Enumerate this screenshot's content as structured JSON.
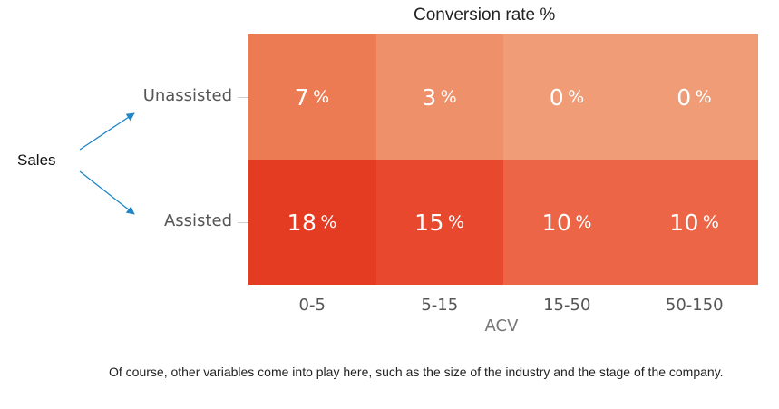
{
  "chart_data": {
    "type": "heatmap",
    "title": "Conversion rate %",
    "xlabel": "ACV",
    "ylabel": "",
    "x_categories": [
      "0-5",
      "5-15",
      "15-50",
      "50-150"
    ],
    "y_categories": [
      "Unassisted",
      "Assisted"
    ],
    "values": [
      [
        7,
        3,
        0,
        0
      ],
      [
        18,
        15,
        10,
        10
      ]
    ],
    "unit": "%",
    "colors": {
      "Unassisted": [
        "#ec7a53",
        "#ee906a",
        "#f09c77",
        "#f09c77"
      ],
      "Assisted": [
        "#e43b23",
        "#e8492e",
        "#eb6546",
        "#eb6546"
      ]
    }
  },
  "annotation": {
    "label": "Sales",
    "arrow_color": "#1f86c8"
  },
  "caption": "Of course, other variables come into play here, such as the size of the industry and the stage of the company."
}
